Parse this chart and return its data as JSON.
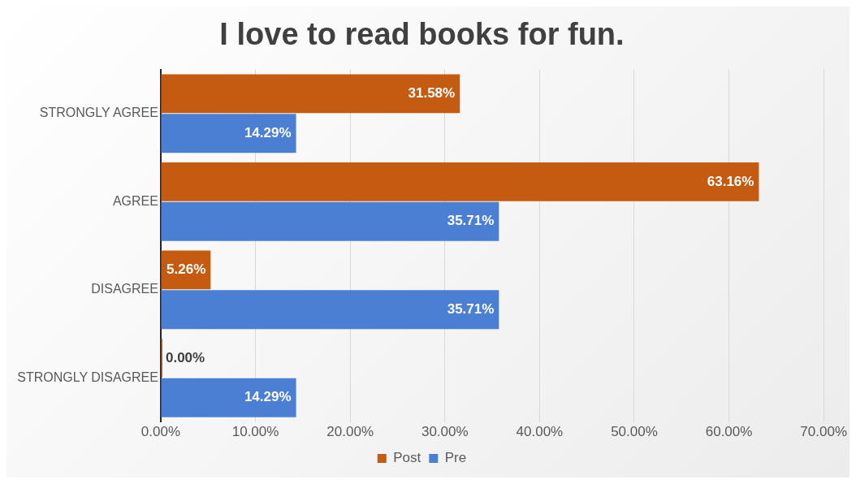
{
  "chart_data": {
    "type": "bar",
    "orientation": "horizontal",
    "title": "I love to read books for fun.",
    "categories": [
      "STRONGLY AGREE",
      "AGREE",
      "DISAGREE",
      "STRONGLY DISAGREE"
    ],
    "series": [
      {
        "name": "Post",
        "color": "#c55a11",
        "values": [
          31.58,
          63.16,
          5.26,
          0.0
        ],
        "value_labels": [
          "31.58%",
          "63.16%",
          "5.26%",
          "0.00%"
        ]
      },
      {
        "name": "Pre",
        "color": "#4a7fd4",
        "values": [
          14.29,
          35.71,
          35.71,
          14.29
        ],
        "value_labels": [
          "14.29%",
          "35.71%",
          "35.71%",
          "14.29%"
        ]
      }
    ],
    "xlim": [
      0,
      70
    ],
    "xticks": [
      {
        "value": 0,
        "label": "0.00%"
      },
      {
        "value": 10,
        "label": "10.00%"
      },
      {
        "value": 20,
        "label": "20.00%"
      },
      {
        "value": 30,
        "label": "30.00%"
      },
      {
        "value": 40,
        "label": "40.00%"
      },
      {
        "value": 50,
        "label": "50.00%"
      },
      {
        "value": 60,
        "label": "60.00%"
      },
      {
        "value": 70,
        "label": "70.00%"
      }
    ],
    "grid": "x",
    "legend": "bottom"
  }
}
